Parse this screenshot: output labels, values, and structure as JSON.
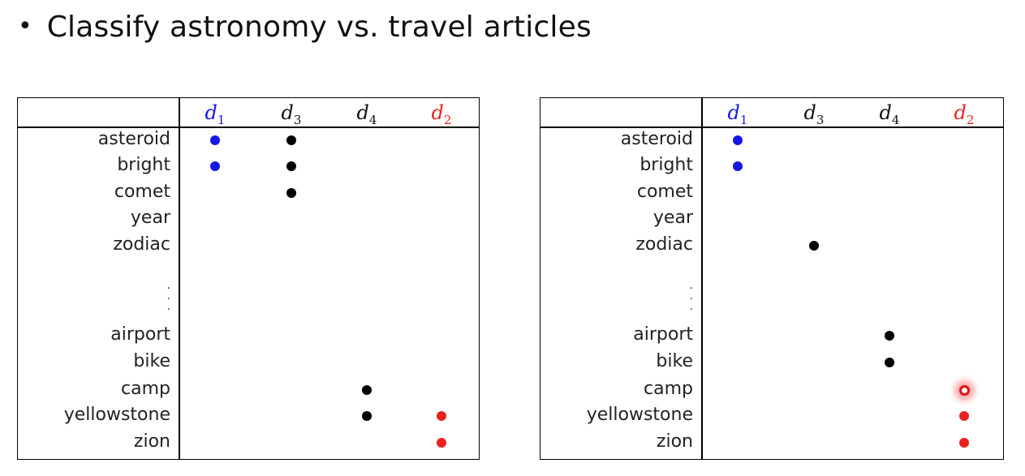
{
  "slide": {
    "bullet": "•",
    "title": "Classify astronomy vs. travel articles"
  },
  "columns": [
    {
      "var": "d",
      "sub": "1",
      "color": "#1616e6"
    },
    {
      "var": "d",
      "sub": "3",
      "color": "#111111"
    },
    {
      "var": "d",
      "sub": "4",
      "color": "#111111"
    },
    {
      "var": "d",
      "sub": "2",
      "color": "#e8231c"
    }
  ],
  "terms": [
    "asteroid",
    "bright",
    "comet",
    "year",
    "zodiac",
    "airport",
    "bike",
    "camp",
    "yellowstone",
    "zion"
  ],
  "ellipsis": ".\n.\n.",
  "tables": [
    {
      "name": "left-table",
      "marks": [
        {
          "term": "asteroid",
          "doc": "d1",
          "style": "blue"
        },
        {
          "term": "asteroid",
          "doc": "d3",
          "style": "black"
        },
        {
          "term": "bright",
          "doc": "d1",
          "style": "blue"
        },
        {
          "term": "bright",
          "doc": "d3",
          "style": "black"
        },
        {
          "term": "comet",
          "doc": "d3",
          "style": "black"
        },
        {
          "term": "camp",
          "doc": "d4",
          "style": "black"
        },
        {
          "term": "yellowstone",
          "doc": "d4",
          "style": "black"
        },
        {
          "term": "yellowstone",
          "doc": "d2",
          "style": "red"
        },
        {
          "term": "zion",
          "doc": "d2",
          "style": "red"
        }
      ]
    },
    {
      "name": "right-table",
      "marks": [
        {
          "term": "asteroid",
          "doc": "d1",
          "style": "blue"
        },
        {
          "term": "bright",
          "doc": "d1",
          "style": "blue"
        },
        {
          "term": "zodiac",
          "doc": "d3",
          "style": "black"
        },
        {
          "term": "airport",
          "doc": "d4",
          "style": "black"
        },
        {
          "term": "bike",
          "doc": "d4",
          "style": "black"
        },
        {
          "term": "camp",
          "doc": "d2",
          "style": "ring"
        },
        {
          "term": "yellowstone",
          "doc": "d2",
          "style": "red"
        },
        {
          "term": "zion",
          "doc": "d2",
          "style": "red"
        }
      ]
    }
  ]
}
